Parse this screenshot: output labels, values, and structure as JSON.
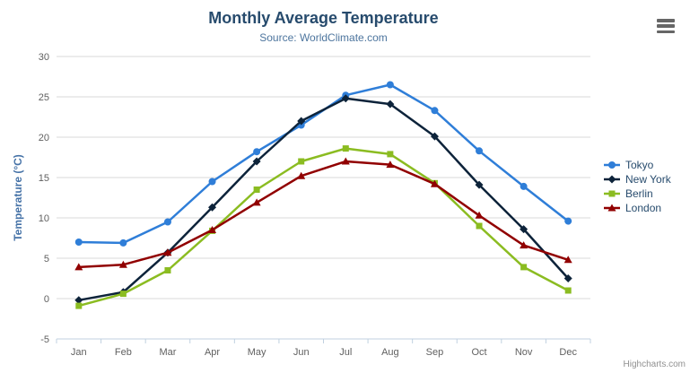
{
  "header": {
    "title": "Monthly Average Temperature",
    "subtitle": "Source: WorldClimate.com"
  },
  "chart_data": {
    "type": "line",
    "title": "Monthly Average Temperature",
    "subtitle": "Source: WorldClimate.com",
    "categories": [
      "Jan",
      "Feb",
      "Mar",
      "Apr",
      "May",
      "Jun",
      "Jul",
      "Aug",
      "Sep",
      "Oct",
      "Nov",
      "Dec"
    ],
    "series": [
      {
        "name": "Tokyo",
        "color": "#2f7ed8",
        "marker": "circle",
        "values": [
          7.0,
          6.9,
          9.5,
          14.5,
          18.2,
          21.5,
          25.2,
          26.5,
          23.3,
          18.3,
          13.9,
          9.6
        ]
      },
      {
        "name": "New York",
        "color": "#0d233a",
        "marker": "diamond",
        "values": [
          -0.2,
          0.8,
          5.7,
          11.3,
          17.0,
          22.0,
          24.8,
          24.1,
          20.1,
          14.1,
          8.6,
          2.5
        ]
      },
      {
        "name": "Berlin",
        "color": "#8bbc21",
        "marker": "square",
        "values": [
          -0.9,
          0.6,
          3.5,
          8.4,
          13.5,
          17.0,
          18.6,
          17.9,
          14.3,
          9.0,
          3.9,
          1.0
        ]
      },
      {
        "name": "London",
        "color": "#910000",
        "marker": "triangle",
        "values": [
          3.9,
          4.2,
          5.7,
          8.5,
          11.9,
          15.2,
          17.0,
          16.6,
          14.2,
          10.3,
          6.6,
          4.8
        ]
      }
    ],
    "xlabel": "",
    "ylabel": "Temperature (°C)",
    "ylim": [
      -5,
      30
    ],
    "ytick_interval": 5,
    "grid": true,
    "legend_position": "right",
    "colors": {
      "grid": "#d8d8d8",
      "axis_line": "#c0d0e0",
      "tick_label": "#606060",
      "axis_title": "#4572a7",
      "title": "#274b6d",
      "subtitle": "#4d759e",
      "legend_text": "#274b6d",
      "credits": "#909090",
      "menu_icon": "#666666"
    }
  },
  "credits": {
    "label": "Highcharts.com"
  }
}
